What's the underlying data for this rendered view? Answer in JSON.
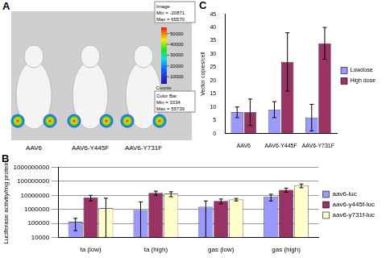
{
  "chart_data": [
    {
      "type": "bar",
      "title": "B",
      "categories": [
        "ta (low)",
        "ta (high)",
        "gas (low)",
        "gas (high)"
      ],
      "y_label": "Luciferase activity/mg protein",
      "log": "y",
      "ylim": [
        10000,
        1000000000
      ],
      "yticks": [
        10000,
        100000,
        1000000,
        10000000,
        100000000,
        1000000000
      ],
      "grid": true,
      "legend": "right",
      "series": [
        {
          "name": "aav6-luc",
          "color": "#9999ff",
          "values": [
            130000,
            900000,
            1500000,
            8000000
          ],
          "errors": [
            100000,
            2500000,
            2500000,
            4000000
          ]
        },
        {
          "name": "aav6-y445f-luc",
          "color": "#993366",
          "values": [
            7000000,
            15000000,
            4000000,
            25000000
          ],
          "errors": [
            3000000,
            5000000,
            1500000,
            8000000
          ]
        },
        {
          "name": "aav6-y731f-luc",
          "color": "#ffffcc",
          "values": [
            1200000,
            13000000,
            5000000,
            50000000
          ],
          "errors": [
            5000000,
            5000000,
            1000000,
            15000000
          ]
        }
      ]
    },
    {
      "type": "bar",
      "title": "C",
      "categories": [
        "AAV6",
        "AAV6-Y445F",
        "AAV6-Y731F"
      ],
      "y_label": "Vector copies/cell",
      "ylim": [
        0,
        45
      ],
      "yticks": [
        0,
        5,
        10,
        15,
        20,
        25,
        30,
        35,
        40,
        45
      ],
      "grid": false,
      "legend": "right",
      "series": [
        {
          "name": "Lowdose",
          "color": "#9999ff",
          "values": [
            8,
            9,
            6
          ],
          "errors": [
            2,
            3,
            5
          ]
        },
        {
          "name": "High dose",
          "color": "#993366",
          "values": [
            8,
            27,
            34
          ],
          "errors": [
            5,
            11,
            6
          ]
        }
      ]
    }
  ],
  "image_panel": {
    "label": "A",
    "captions": [
      "AAV6",
      "AAV6-Y445F",
      "AAV6-Y731F"
    ],
    "image_text": [
      "Image",
      "Min = -20871",
      "Max = 65570"
    ],
    "colorbar_text": [
      "Color Bar",
      "Min = 3334",
      "Max = 55739"
    ],
    "colorbar": {
      "label": "Counts",
      "range": [
        3334,
        55739
      ],
      "ticks": [
        10000,
        20000,
        30000,
        40000,
        50000
      ]
    }
  }
}
